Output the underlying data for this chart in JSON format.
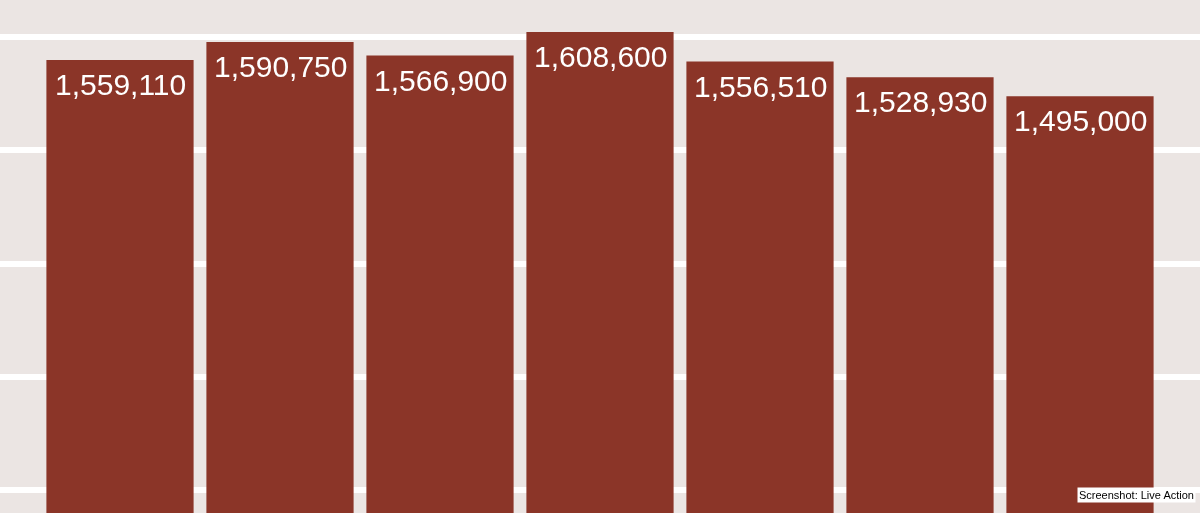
{
  "chart_data": {
    "type": "bar",
    "categories": [
      null,
      null,
      null,
      null,
      null,
      null,
      null
    ],
    "values": [
      1559110,
      1590750,
      1566900,
      1608600,
      1556510,
      1528930,
      1495000
    ],
    "color": "#8b3528",
    "value_labels": [
      "1,559,110",
      "1,590,750",
      "1,566,900",
      "1,608,600",
      "1,556,510",
      "1,528,930",
      "1,495,000"
    ],
    "ylim": [
      760000,
      1665000
    ],
    "yticks": [
      {
        "value": 800000,
        "label": null
      },
      {
        "value": 1000000,
        "label": null
      },
      {
        "value": 1200000,
        "label": null
      },
      {
        "value": 1400000,
        "label": null
      },
      {
        "value": 1600000,
        "label": null
      }
    ],
    "grid": "y",
    "annotations": [
      "Screenshot: Live Action"
    ]
  }
}
